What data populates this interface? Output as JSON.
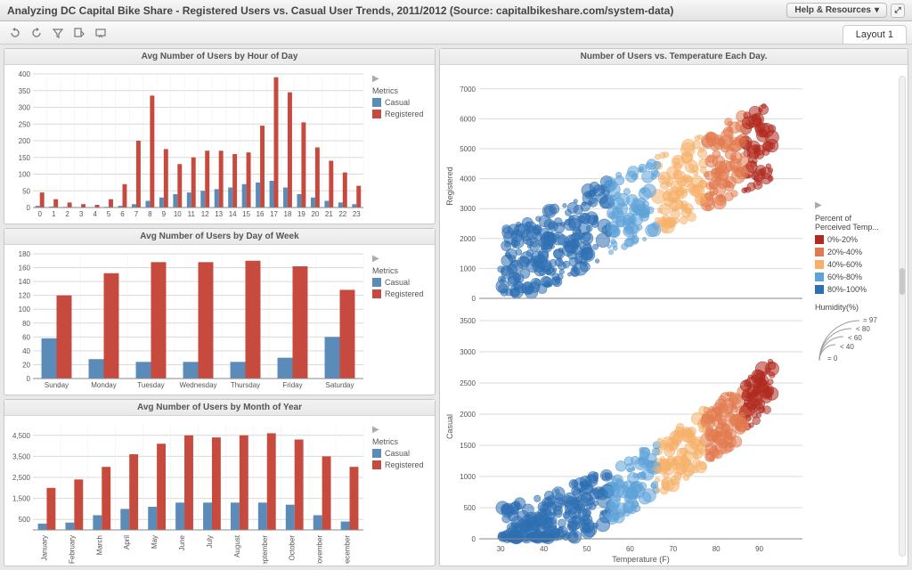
{
  "window": {
    "title": "Analyzing DC Capital Bike Share - Registered Users vs. Casual User Trends, 2011/2012 (Source: capitalbikeshare.com/system-data)",
    "help_label": "Help & Resources",
    "tab_label": "Layout 1"
  },
  "colors": {
    "casual": "#5b8bb8",
    "registered": "#c64a3d",
    "grid": "#d9d9d9",
    "axis": "#888888",
    "panel_bg": "#ffffff",
    "temp_bins": {
      "0_20": "#b02a1f",
      "20_40": "#e27a4f",
      "40_60": "#f5b06a",
      "60_80": "#5ea3d8",
      "80_100": "#2e6fb3"
    }
  },
  "legend_labels": {
    "metrics": "Metrics",
    "casual": "Casual",
    "registered": "Registered",
    "percent_title": "Percent of\nPerceived Temp...",
    "bin_0_20": "0%-20%",
    "bin_20_40": "20%-40%",
    "bin_40_60": "40%-60%",
    "bin_60_80": "60%-80%",
    "bin_80_100": "80%-100%",
    "humidity_title": "Humidity(%)",
    "hum_97": "= 97",
    "hum_80": "< 80",
    "hum_60": "< 60",
    "hum_40": "< 40",
    "hum_0": "= 0"
  },
  "hour_chart": {
    "title": "Avg Number of Users by Hour of Day",
    "type": "grouped_bar",
    "categories": [
      "0",
      "1",
      "2",
      "3",
      "4",
      "5",
      "6",
      "7",
      "8",
      "9",
      "10",
      "11",
      "12",
      "13",
      "14",
      "15",
      "16",
      "17",
      "18",
      "19",
      "20",
      "21",
      "22",
      "23"
    ],
    "casual": [
      5,
      3,
      2,
      1,
      1,
      2,
      5,
      10,
      20,
      30,
      40,
      45,
      50,
      55,
      60,
      70,
      75,
      80,
      60,
      40,
      30,
      20,
      15,
      10
    ],
    "registered": [
      45,
      25,
      15,
      10,
      8,
      25,
      70,
      200,
      335,
      175,
      130,
      150,
      170,
      170,
      160,
      165,
      245,
      390,
      345,
      255,
      180,
      140,
      105,
      65
    ],
    "ylim": [
      0,
      400
    ],
    "ytick_step": 50
  },
  "dow_chart": {
    "title": "Avg Number of Users by Day of Week",
    "type": "grouped_bar",
    "categories": [
      "Sunday",
      "Monday",
      "Tuesday",
      "Wednesday",
      "Thursday",
      "Friday",
      "Saturday"
    ],
    "casual": [
      58,
      28,
      24,
      24,
      24,
      30,
      60
    ],
    "registered": [
      120,
      152,
      168,
      168,
      170,
      162,
      128
    ],
    "ylim": [
      0,
      180
    ],
    "ytick_step": 20
  },
  "month_chart": {
    "title": "Avg Number of Users by Month of Year",
    "type": "grouped_bar",
    "categories": [
      "January",
      "February",
      "March",
      "April",
      "May",
      "June",
      "July",
      "August",
      "September",
      "October",
      "November",
      "December"
    ],
    "casual": [
      300,
      350,
      700,
      1000,
      1100,
      1300,
      1300,
      1300,
      1300,
      1200,
      700,
      400
    ],
    "registered": [
      2000,
      2400,
      3000,
      3600,
      4100,
      4500,
      4400,
      4500,
      4600,
      4300,
      3500,
      3000
    ],
    "ylim": [
      0,
      5000
    ],
    "ytick_step": 1000,
    "yticklabels": [
      "500",
      "1,500",
      "2,500",
      "3,500",
      "4,500"
    ],
    "ytickvals": [
      500,
      1500,
      2500,
      3500,
      4500
    ]
  },
  "scatter": {
    "title": "Number of Users vs. Temperature Each Day.",
    "xlabel": "Temperature (F)",
    "y1label": "Registered",
    "y2label": "Casual",
    "xlim": [
      25,
      100
    ],
    "xtick_step": 10,
    "y1lim": [
      0,
      7500
    ],
    "y1tick_step": 1000,
    "y2lim": [
      0,
      3600
    ],
    "y2tick_step": 500,
    "seed": 42,
    "n_points": 520
  }
}
